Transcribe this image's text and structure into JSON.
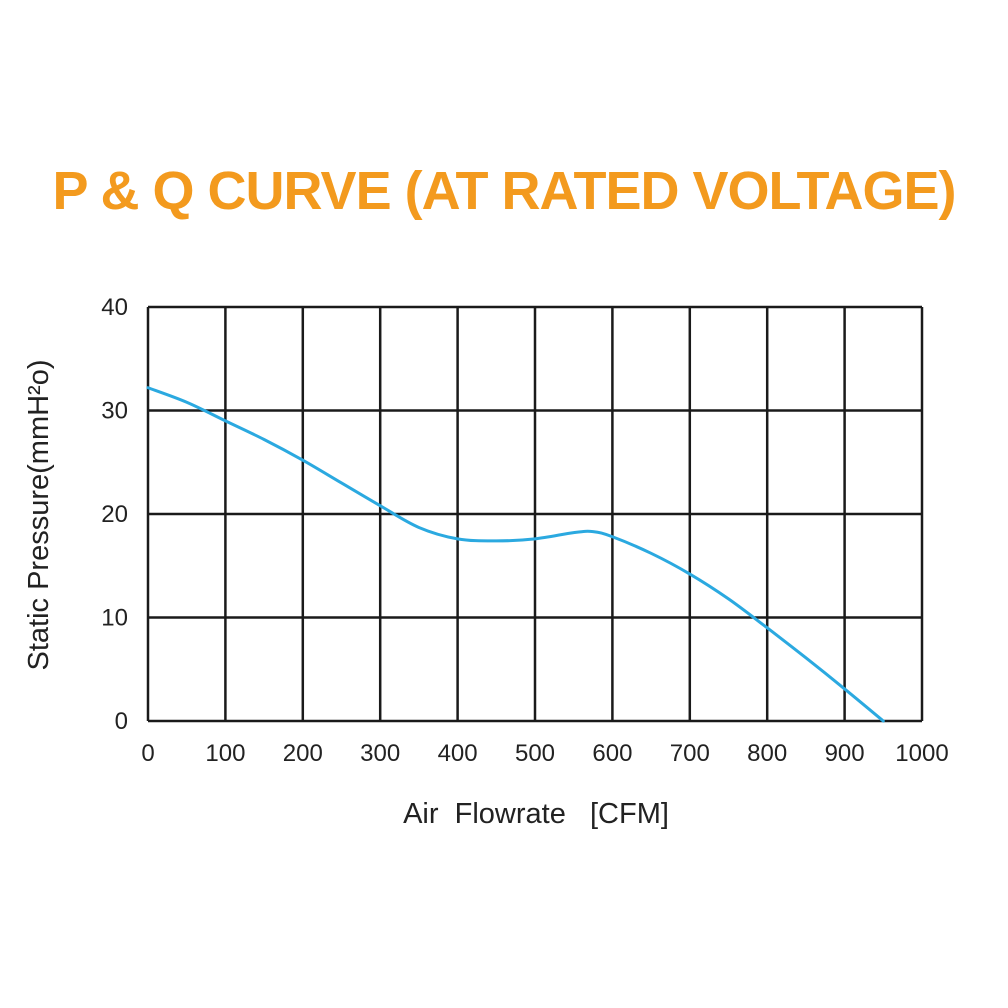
{
  "colors": {
    "title": "#F39A1E",
    "curve": "#2BA9E0",
    "grid": "#1a1a1a",
    "text": "#222222"
  },
  "chart_data": {
    "type": "line",
    "title": "P & Q CURVE (AT RATED VOLTAGE)",
    "xlabel": "Air  Flowrate   [CFM]",
    "ylabel": "Static Pressure(mmH²o)",
    "xlim": [
      0,
      1000
    ],
    "ylim": [
      0,
      40
    ],
    "xticks": [
      0,
      100,
      200,
      300,
      400,
      500,
      600,
      700,
      800,
      900,
      1000
    ],
    "xtick_labels": [
      "0",
      "100",
      "200",
      "300",
      "400",
      "500",
      "600",
      "700",
      "800",
      "900",
      "1000"
    ],
    "yticks": [
      0,
      10,
      20,
      30,
      40
    ],
    "ytick_labels": [
      "0",
      "10",
      "20",
      "30",
      "40"
    ],
    "grid": true,
    "series": [
      {
        "x": [
          0,
          50,
          100,
          150,
          200,
          250,
          300,
          350,
          400,
          450,
          500,
          550,
          575,
          600,
          650,
          700,
          750,
          800,
          850,
          900,
          950
        ],
        "y": [
          32.2,
          30.8,
          29.0,
          27.2,
          25.2,
          23.0,
          20.8,
          18.7,
          17.6,
          17.4,
          17.6,
          18.2,
          18.3,
          17.8,
          16.2,
          14.2,
          11.8,
          9.0,
          6.1,
          3.1,
          0
        ]
      }
    ]
  }
}
